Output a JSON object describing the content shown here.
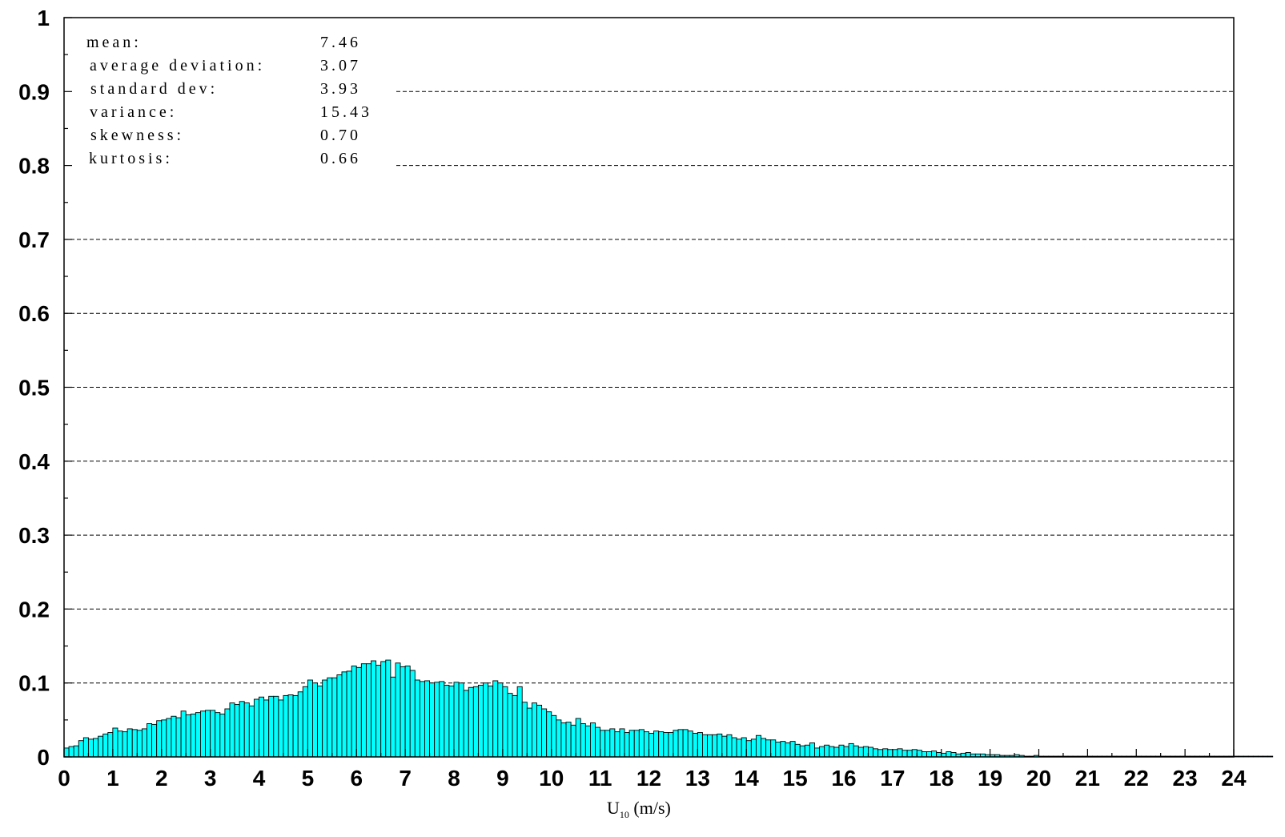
{
  "colors": {
    "bar_fill": "#00FFFF",
    "bar_stroke": "#000000",
    "axis": "#000000",
    "grid": "#000000"
  },
  "chart_data": {
    "type": "bar",
    "title": "",
    "xlabel": "U",
    "xlabel_subscript": "10",
    "xlabel_unit": " (m/s)",
    "ylabel": "",
    "xlim": [
      0,
      24
    ],
    "ylim": [
      0,
      1
    ],
    "grid": "horizontal dashed",
    "x_ticks": [
      "0",
      "1",
      "2",
      "3",
      "4",
      "5",
      "6",
      "7",
      "8",
      "9",
      "10",
      "11",
      "12",
      "13",
      "14",
      "15",
      "16",
      "17",
      "18",
      "19",
      "20",
      "21",
      "22",
      "23",
      "24"
    ],
    "y_ticks": [
      "0",
      "0.1",
      "0.2",
      "0.3",
      "0.4",
      "0.5",
      "0.6",
      "0.7",
      "0.8",
      "0.9",
      "1"
    ],
    "bin_width": 0.1,
    "bin_start": 0,
    "values": [
      0.012,
      0.014,
      0.015,
      0.022,
      0.026,
      0.024,
      0.025,
      0.028,
      0.031,
      0.033,
      0.039,
      0.035,
      0.034,
      0.038,
      0.037,
      0.036,
      0.038,
      0.045,
      0.044,
      0.049,
      0.05,
      0.052,
      0.055,
      0.053,
      0.062,
      0.057,
      0.058,
      0.06,
      0.062,
      0.063,
      0.063,
      0.06,
      0.058,
      0.065,
      0.073,
      0.071,
      0.075,
      0.073,
      0.069,
      0.078,
      0.081,
      0.077,
      0.082,
      0.082,
      0.077,
      0.083,
      0.084,
      0.083,
      0.088,
      0.095,
      0.104,
      0.1,
      0.096,
      0.104,
      0.107,
      0.107,
      0.111,
      0.115,
      0.116,
      0.123,
      0.121,
      0.126,
      0.126,
      0.13,
      0.124,
      0.129,
      0.131,
      0.108,
      0.127,
      0.122,
      0.123,
      0.117,
      0.104,
      0.102,
      0.103,
      0.1,
      0.101,
      0.102,
      0.097,
      0.096,
      0.101,
      0.1,
      0.09,
      0.094,
      0.095,
      0.097,
      0.1,
      0.096,
      0.103,
      0.1,
      0.095,
      0.086,
      0.083,
      0.095,
      0.074,
      0.066,
      0.073,
      0.07,
      0.065,
      0.061,
      0.056,
      0.05,
      0.046,
      0.047,
      0.043,
      0.052,
      0.045,
      0.042,
      0.046,
      0.04,
      0.036,
      0.036,
      0.038,
      0.034,
      0.038,
      0.033,
      0.036,
      0.036,
      0.037,
      0.034,
      0.032,
      0.035,
      0.034,
      0.033,
      0.033,
      0.036,
      0.037,
      0.037,
      0.035,
      0.032,
      0.033,
      0.03,
      0.03,
      0.03,
      0.031,
      0.028,
      0.03,
      0.026,
      0.024,
      0.026,
      0.022,
      0.024,
      0.029,
      0.025,
      0.023,
      0.023,
      0.02,
      0.021,
      0.019,
      0.021,
      0.017,
      0.015,
      0.016,
      0.019,
      0.012,
      0.014,
      0.016,
      0.014,
      0.013,
      0.016,
      0.014,
      0.018,
      0.015,
      0.013,
      0.014,
      0.013,
      0.011,
      0.01,
      0.011,
      0.01,
      0.01,
      0.011,
      0.009,
      0.009,
      0.01,
      0.009,
      0.007,
      0.007,
      0.008,
      0.006,
      0.005,
      0.007,
      0.006,
      0.004,
      0.005,
      0.006,
      0.004,
      0.004,
      0.004,
      0.003,
      0.003,
      0.003,
      0.002,
      0.002,
      0.002,
      0.003,
      0.002,
      0.001,
      0.001,
      0.002,
      0.001,
      0.001,
      0.001,
      0.001,
      0.001,
      0.001,
      0.001,
      0.001,
      0.001,
      0.001,
      0.001,
      0.001,
      0.001,
      0.001,
      0.001,
      0.001,
      0.001,
      0.001,
      0.001,
      0.001,
      0.001,
      0.001,
      0.001,
      0.001,
      0.001,
      0.001,
      0.001,
      0.001,
      0.001,
      0.001,
      0.001,
      0.001,
      0.001,
      0.001,
      0.001,
      0.001,
      0.001,
      0.001,
      0.001,
      0.001,
      0.001,
      0.001,
      0.001,
      0.001,
      0.001,
      0.001,
      0.001,
      0.001
    ]
  },
  "stats": [
    {
      "label": "mean:",
      "value": "7.46"
    },
    {
      "label": "average deviation:",
      "value": "3.07"
    },
    {
      "label": "standard dev:",
      "value": "3.93"
    },
    {
      "label": "variance:",
      "value": "15.43"
    },
    {
      "label": "skewness:",
      "value": "0.70"
    },
    {
      "label": "kurtosis:",
      "value": "0.66"
    }
  ]
}
